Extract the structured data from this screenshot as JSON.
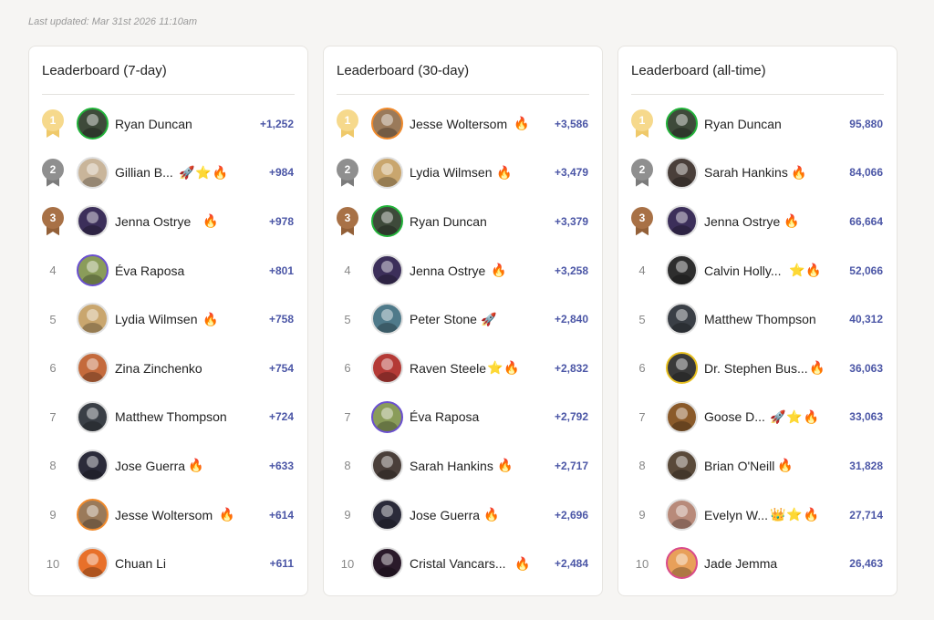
{
  "last_updated": "Last updated: Mar 31st 2026 11:10am",
  "boards": [
    {
      "title": "Leaderboard (7-day)",
      "rows": [
        {
          "rank": "1",
          "name": "Ryan Duncan",
          "badges": "",
          "score": "+1,252",
          "ring": "#22b33a",
          "bg": "#3e4a3a"
        },
        {
          "rank": "2",
          "name": "Gillian B...",
          "badges": "🚀⭐🔥",
          "score": "+984",
          "ring": "#e0e0e0",
          "bg": "#c9b59a"
        },
        {
          "rank": "3",
          "name": "Jenna Ostrye",
          "badges": "🔥",
          "score": "+978",
          "ring": "#e0e0e0",
          "bg": "#3c2f5a"
        },
        {
          "rank": "4",
          "name": "Éva Raposa",
          "badges": "",
          "score": "+801",
          "ring": "#6a4fd0",
          "bg": "#8a9c5a"
        },
        {
          "rank": "5",
          "name": "Lydia Wilmsen",
          "badges": "🔥",
          "score": "+758",
          "ring": "#e0e0e0",
          "bg": "#c9a66e"
        },
        {
          "rank": "6",
          "name": "Zina Zinchenko",
          "badges": "",
          "score": "+754",
          "ring": "#e0e0e0",
          "bg": "#c46a3c"
        },
        {
          "rank": "7",
          "name": "Matthew Thompson",
          "badges": "",
          "score": "+724",
          "ring": "#e0e0e0",
          "bg": "#3a3f46"
        },
        {
          "rank": "8",
          "name": "Jose Guerra",
          "badges": "🔥",
          "score": "+633",
          "ring": "#e0e0e0",
          "bg": "#2b2b3a"
        },
        {
          "rank": "9",
          "name": "Jesse Woltersom",
          "badges": "🔥",
          "score": "+614",
          "ring": "#f08a2c",
          "bg": "#9a7a5a"
        },
        {
          "rank": "10",
          "name": "Chuan Li",
          "badges": "",
          "score": "+611",
          "ring": "#e0e0e0",
          "bg": "#e8702a"
        }
      ]
    },
    {
      "title": "Leaderboard (30-day)",
      "rows": [
        {
          "rank": "1",
          "name": "Jesse Woltersom",
          "badges": "🔥",
          "score": "+3,586",
          "ring": "#f08a2c",
          "bg": "#9a7a5a"
        },
        {
          "rank": "2",
          "name": "Lydia Wilmsen",
          "badges": "🔥",
          "score": "+3,479",
          "ring": "#e0e0e0",
          "bg": "#c9a66e"
        },
        {
          "rank": "3",
          "name": "Ryan Duncan",
          "badges": "",
          "score": "+3,379",
          "ring": "#22b33a",
          "bg": "#3e4a3a"
        },
        {
          "rank": "4",
          "name": "Jenna Ostrye",
          "badges": "🔥",
          "score": "+3,258",
          "ring": "#e0e0e0",
          "bg": "#3c2f5a"
        },
        {
          "rank": "5",
          "name": "Peter Stone",
          "badges": "🚀",
          "score": "+2,840",
          "ring": "#e0e0e0",
          "bg": "#4f7a8a"
        },
        {
          "rank": "6",
          "name": "Raven Steele",
          "badges": "⭐🔥",
          "score": "+2,832",
          "ring": "#e0e0e0",
          "bg": "#b43a36"
        },
        {
          "rank": "7",
          "name": "Éva Raposa",
          "badges": "",
          "score": "+2,792",
          "ring": "#6a4fd0",
          "bg": "#8a9c5a"
        },
        {
          "rank": "8",
          "name": "Sarah Hankins",
          "badges": "🔥",
          "score": "+2,717",
          "ring": "#e0e0e0",
          "bg": "#4a3f3a"
        },
        {
          "rank": "9",
          "name": "Jose Guerra",
          "badges": "🔥",
          "score": "+2,696",
          "ring": "#e0e0e0",
          "bg": "#2b2b3a"
        },
        {
          "rank": "10",
          "name": "Cristal Vancars...",
          "badges": "🔥",
          "score": "+2,484",
          "ring": "#e0e0e0",
          "bg": "#2a1a2a"
        }
      ]
    },
    {
      "title": "Leaderboard (all-time)",
      "rows": [
        {
          "rank": "1",
          "name": "Ryan Duncan",
          "badges": "",
          "score": "95,880",
          "ring": "#22b33a",
          "bg": "#3e4a3a"
        },
        {
          "rank": "2",
          "name": "Sarah Hankins",
          "badges": "🔥",
          "score": "84,066",
          "ring": "#e0e0e0",
          "bg": "#4a3f3a"
        },
        {
          "rank": "3",
          "name": "Jenna Ostrye",
          "badges": "🔥",
          "score": "66,664",
          "ring": "#e0e0e0",
          "bg": "#3c2f5a"
        },
        {
          "rank": "4",
          "name": "Calvin Holly...",
          "badges": "⭐🔥",
          "score": "52,066",
          "ring": "#e0e0e0",
          "bg": "#2e2e2e"
        },
        {
          "rank": "5",
          "name": "Matthew Thompson",
          "badges": "",
          "score": "40,312",
          "ring": "#e0e0e0",
          "bg": "#3a3f46"
        },
        {
          "rank": "6",
          "name": "Dr. Stephen Bus...",
          "badges": "🔥",
          "score": "36,063",
          "ring": "#e8c020",
          "bg": "#3a3a3a"
        },
        {
          "rank": "7",
          "name": "Goose D...",
          "badges": "🚀⭐🔥",
          "score": "33,063",
          "ring": "#e0e0e0",
          "bg": "#8a5a2a"
        },
        {
          "rank": "8",
          "name": "Brian O'Neill",
          "badges": "🔥",
          "score": "31,828",
          "ring": "#e0e0e0",
          "bg": "#5a4a3a"
        },
        {
          "rank": "9",
          "name": "Evelyn W...",
          "badges": "👑⭐🔥",
          "score": "27,714",
          "ring": "#e0e0e0",
          "bg": "#b88a7a"
        },
        {
          "rank": "10",
          "name": "Jade Jemma",
          "badges": "",
          "score": "26,463",
          "ring": "#d94a8a",
          "bg": "#e8a05a"
        }
      ]
    }
  ]
}
